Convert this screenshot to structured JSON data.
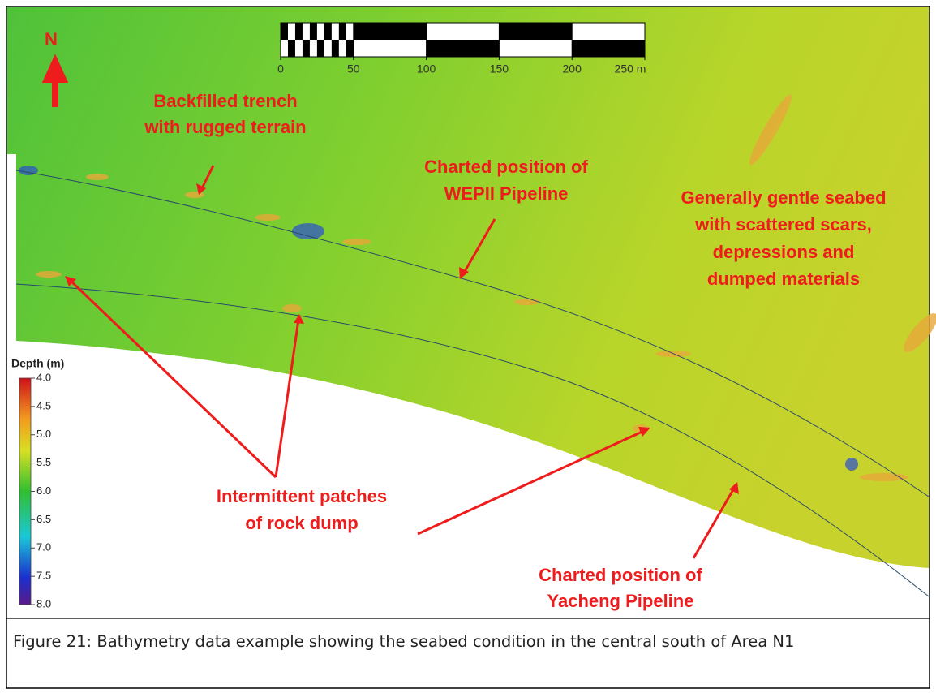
{
  "north_label": "N",
  "scale_bar": {
    "ticks": [
      0,
      50,
      100,
      150,
      200,
      {
        "value": 250,
        "label": "250 m"
      }
    ]
  },
  "colorbar": {
    "title": "Depth (m)",
    "ticks": [
      {
        "value": 4,
        "label": "4.0"
      },
      {
        "value": 4.5,
        "label": "4.5"
      },
      {
        "value": 5,
        "label": "5.0"
      },
      {
        "value": 5.5,
        "label": "5.5"
      },
      {
        "value": 6,
        "label": "6.0"
      },
      {
        "value": 6.5,
        "label": "6.5"
      },
      {
        "value": 7,
        "label": "7.0"
      },
      {
        "value": 7.5,
        "label": "7.5"
      },
      {
        "value": 8,
        "label": "8.0"
      }
    ]
  },
  "annotations": {
    "backfilled": [
      "Backfilled trench",
      "with rugged terrain"
    ],
    "wepii": [
      "Charted position of",
      "WEPII Pipeline"
    ],
    "gentle": [
      "Generally gentle seabed",
      "with scattered scars,",
      "depressions and",
      "dumped materials"
    ],
    "rock_dump": [
      "Intermittent patches",
      "of rock dump"
    ],
    "yacheng": [
      "Charted position of",
      "Yacheng Pipeline"
    ]
  },
  "caption": "Figure 21: Bathymetry data example showing the seabed condition in the central south of Area N1"
}
